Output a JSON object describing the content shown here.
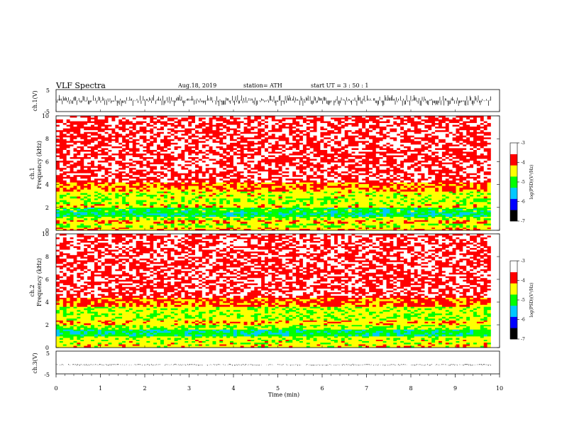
{
  "header": {
    "title": "VLF  Spectra",
    "date": "Aug.18, 2019",
    "station": "station= ATH",
    "start": "start  UT  =    3  : 50 : 1"
  },
  "chart_data": [
    {
      "id": "ch1-waveform",
      "type": "line",
      "ylabel": "ch.1(V)",
      "ylim": [
        -5,
        5
      ],
      "ytick_labels": [
        "5",
        "-5"
      ],
      "xlim": [
        0,
        10
      ],
      "x_end_data": 9.8,
      "amplitude_range": [
        -2.5,
        2.5
      ],
      "color": "#000000"
    },
    {
      "id": "ch1-spectrogram",
      "type": "heatmap",
      "ylabel_lines": [
        "ch.1",
        "Frequency  (kHz)"
      ],
      "ylim": [
        0,
        10
      ],
      "ytick_labels": [
        "10",
        "8",
        "6",
        "4",
        "2",
        "0"
      ],
      "xlim": [
        0,
        10
      ],
      "x_end_data": 9.8,
      "colorbar": {
        "label": "log(PSD)(V²/Hz)",
        "range": [
          -7,
          -3
        ],
        "tick_labels": [
          "-3",
          "-4",
          "-5",
          "-6",
          "-7"
        ],
        "colors": [
          "#000000",
          "#0000ff",
          "#00c8ff",
          "#00ff00",
          "#ffff00",
          "#ff0000",
          "#ffffff"
        ]
      },
      "bands": [
        {
          "f": [
            0.0,
            0.25
          ],
          "level": -4.2
        },
        {
          "f": [
            0.25,
            0.6
          ],
          "level": -4.5
        },
        {
          "f": [
            0.6,
            0.9
          ],
          "level": -4.1
        },
        {
          "f": [
            0.9,
            1.2
          ],
          "level": -4.6
        },
        {
          "f": [
            1.2,
            1.6
          ],
          "level": -5.2
        },
        {
          "f": [
            1.6,
            2.0
          ],
          "level": -5.0
        },
        {
          "f": [
            2.0,
            2.3
          ],
          "level": -4.3
        },
        {
          "f": [
            2.3,
            2.8
          ],
          "level": -4.6
        },
        {
          "f": [
            2.8,
            3.4
          ],
          "level": -4.4
        },
        {
          "f": [
            3.4,
            4.2
          ],
          "level": -4.0
        },
        {
          "f": [
            4.2,
            10.0
          ],
          "level": -3.4
        }
      ]
    },
    {
      "id": "ch2-spectrogram",
      "type": "heatmap",
      "ylabel_lines": [
        "ch.2",
        "Frequency  (kHz)"
      ],
      "ylim": [
        0,
        10
      ],
      "ytick_labels": [
        "10",
        "8",
        "6",
        "4",
        "2",
        "0"
      ],
      "xlim": [
        0,
        10
      ],
      "x_end_data": 9.8,
      "colorbar": {
        "label": "log(PSD)(V²/Hz)",
        "range": [
          -7,
          -3
        ],
        "tick_labels": [
          "-3",
          "-4",
          "-5",
          "-6",
          "-7"
        ],
        "colors": [
          "#000000",
          "#0000ff",
          "#00c8ff",
          "#00ff00",
          "#ffff00",
          "#ff0000",
          "#ffffff"
        ]
      },
      "bands": [
        {
          "f": [
            0.0,
            0.3
          ],
          "level": -4.3
        },
        {
          "f": [
            0.3,
            0.7
          ],
          "level": -4.4
        },
        {
          "f": [
            0.7,
            1.0
          ],
          "level": -4.5
        },
        {
          "f": [
            1.0,
            1.6
          ],
          "level": -5.2
        },
        {
          "f": [
            1.6,
            2.0
          ],
          "level": -4.6
        },
        {
          "f": [
            2.0,
            2.4
          ],
          "level": -4.2
        },
        {
          "f": [
            2.4,
            3.6
          ],
          "level": -4.5
        },
        {
          "f": [
            3.6,
            4.4
          ],
          "level": -3.9
        },
        {
          "f": [
            4.4,
            10.0
          ],
          "level": -3.4
        }
      ]
    },
    {
      "id": "ch3-waveform",
      "type": "line",
      "ylabel": "ch.3(V)",
      "ylim": [
        -5,
        5
      ],
      "ytick_labels": [
        "5",
        "-5"
      ],
      "xlim": [
        0,
        10
      ],
      "x_end_data": 9.8,
      "baseline": -1.0,
      "amplitude_range": [
        -0.4,
        0.4
      ],
      "gaps_min": [
        0.22,
        2.4,
        3.35,
        4.7,
        4.95,
        5.58,
        7.95,
        8.52
      ],
      "color": "#000000"
    }
  ],
  "x_axis": {
    "label": "Time  (min)",
    "ticks": [
      0,
      1,
      2,
      3,
      4,
      5,
      6,
      7,
      8,
      9,
      10
    ],
    "tick_labels": [
      "0",
      "1",
      "2",
      "3",
      "4",
      "5",
      "6",
      "7",
      "8",
      "9",
      "10"
    ]
  }
}
